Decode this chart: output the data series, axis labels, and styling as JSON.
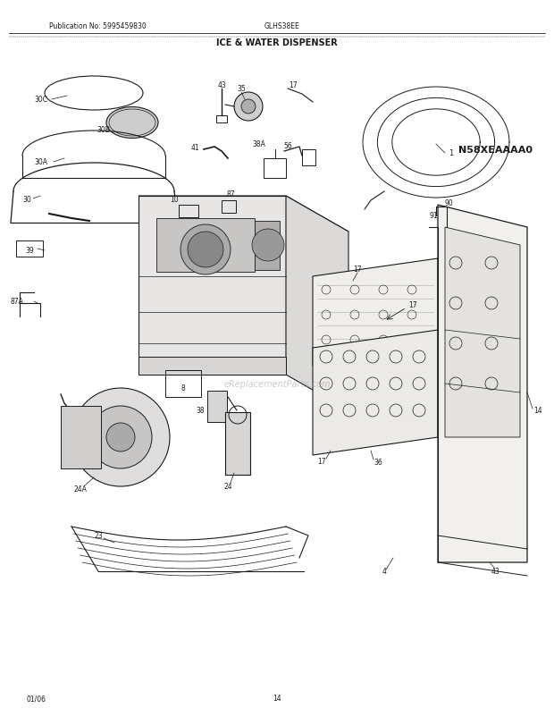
{
  "title": "ICE & WATER DISPENSER",
  "pub_no": "Publication No: 5995459830",
  "model": "GLHS38EE",
  "diagram_id": "N58XEAAAA0",
  "date": "01/06",
  "page": "14",
  "bg_color": "#ffffff",
  "line_color": "#1a1a1a",
  "text_color": "#1a1a1a",
  "watermark": "eReplacementParts.com"
}
